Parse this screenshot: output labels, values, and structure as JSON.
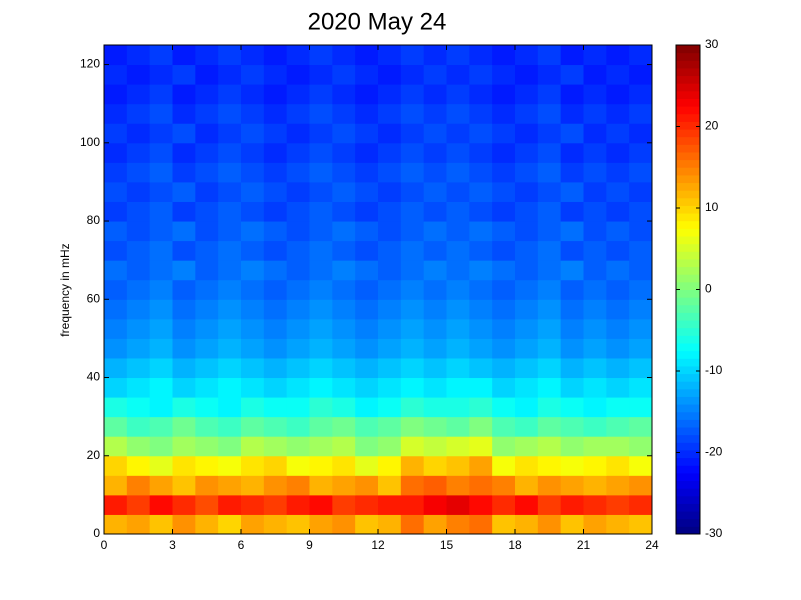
{
  "chart_data": {
    "type": "heatmap",
    "title": "2020 May 24",
    "y_label": "frequency in mHz",
    "colormap": "jet",
    "xlim": [
      0,
      24
    ],
    "ylim": [
      0,
      125
    ],
    "xticks": [
      0,
      3,
      6,
      9,
      12,
      15,
      18,
      21,
      24
    ],
    "yticks": [
      0,
      20,
      40,
      60,
      80,
      100,
      120
    ],
    "clim": [
      -30,
      30
    ],
    "cticks": [
      -30,
      -20,
      -10,
      0,
      10,
      20,
      30
    ],
    "values": [
      [
        12,
        13,
        11,
        14,
        12,
        10,
        13,
        12,
        11,
        13,
        14,
        11,
        12,
        16,
        13,
        15,
        16,
        11,
        12,
        14,
        11,
        13,
        12,
        11
      ],
      [
        21,
        19,
        22,
        20,
        18,
        21,
        20,
        19,
        21,
        22,
        19,
        20,
        21,
        21,
        23,
        24,
        22,
        20,
        22,
        19,
        21,
        20,
        19,
        20
      ],
      [
        12,
        15,
        13,
        11,
        14,
        13,
        12,
        14,
        15,
        12,
        13,
        14,
        11,
        16,
        17,
        15,
        16,
        15,
        12,
        14,
        13,
        12,
        13,
        14
      ],
      [
        10,
        8,
        6,
        9,
        8,
        7,
        9,
        10,
        7,
        8,
        9,
        6,
        8,
        12,
        10,
        11,
        13,
        7,
        9,
        8,
        7,
        8,
        9,
        7
      ],
      [
        3,
        1,
        0,
        2,
        1,
        0,
        3,
        2,
        1,
        2,
        3,
        0,
        1,
        5,
        4,
        5,
        6,
        1,
        2,
        3,
        1,
        2,
        2,
        1
      ],
      [
        -2,
        -4,
        -3,
        -1,
        -3,
        -4,
        -2,
        -3,
        -4,
        -2,
        -1,
        -3,
        -2,
        0,
        -1,
        -2,
        0,
        -3,
        -4,
        -2,
        -3,
        -4,
        -3,
        -2
      ],
      [
        -6,
        -7,
        -8,
        -6,
        -7,
        -8,
        -6,
        -7,
        -7,
        -5,
        -6,
        -8,
        -7,
        -5,
        -6,
        -6,
        -5,
        -7,
        -8,
        -6,
        -7,
        -8,
        -7,
        -7
      ],
      [
        -10,
        -9,
        -8,
        -10,
        -9,
        -8,
        -9,
        -10,
        -9,
        -8,
        -9,
        -10,
        -9,
        -8,
        -9,
        -8,
        -8,
        -10,
        -9,
        -8,
        -10,
        -9,
        -10,
        -9
      ],
      [
        -12,
        -11,
        -10,
        -12,
        -11,
        -10,
        -11,
        -12,
        -11,
        -10,
        -11,
        -12,
        -11,
        -10,
        -11,
        -10,
        -11,
        -12,
        -11,
        -10,
        -12,
        -11,
        -12,
        -11
      ],
      [
        -14,
        -13,
        -12,
        -14,
        -13,
        -12,
        -13,
        -14,
        -13,
        -12,
        -13,
        -14,
        -13,
        -12,
        -13,
        -12,
        -13,
        -14,
        -13,
        -12,
        -14,
        -13,
        -14,
        -13
      ],
      [
        -15,
        -14,
        -13,
        -15,
        -14,
        -13,
        -14,
        -15,
        -14,
        -13,
        -14,
        -15,
        -14,
        -13,
        -14,
        -13,
        -14,
        -15,
        -14,
        -13,
        -15,
        -14,
        -15,
        -14
      ],
      [
        -16,
        -15,
        -14,
        -16,
        -15,
        -14,
        -15,
        -16,
        -15,
        -14,
        -15,
        -16,
        -15,
        -14,
        -15,
        -14,
        -15,
        -16,
        -15,
        -14,
        -16,
        -15,
        -16,
        -15
      ],
      [
        -17,
        -16,
        -15,
        -17,
        -16,
        -15,
        -16,
        -17,
        -16,
        -15,
        -16,
        -17,
        -16,
        -15,
        -16,
        -15,
        -16,
        -17,
        -16,
        -15,
        -17,
        -16,
        -17,
        -16
      ],
      [
        -16,
        -17,
        -16,
        -15,
        -17,
        -16,
        -15,
        -16,
        -17,
        -16,
        -15,
        -16,
        -17,
        -16,
        -15,
        -16,
        -15,
        -16,
        -17,
        -16,
        -15,
        -17,
        -16,
        -17
      ],
      [
        -18,
        -17,
        -16,
        -18,
        -17,
        -16,
        -17,
        -18,
        -17,
        -16,
        -17,
        -18,
        -17,
        -16,
        -17,
        -16,
        -17,
        -18,
        -17,
        -16,
        -18,
        -17,
        -18,
        -17
      ],
      [
        -17,
        -18,
        -17,
        -16,
        -18,
        -17,
        -16,
        -17,
        -18,
        -17,
        -16,
        -17,
        -18,
        -17,
        -16,
        -17,
        -16,
        -17,
        -18,
        -17,
        -16,
        -18,
        -17,
        -18
      ],
      [
        -19,
        -18,
        -17,
        -19,
        -18,
        -17,
        -18,
        -19,
        -18,
        -17,
        -18,
        -19,
        -18,
        -17,
        -18,
        -17,
        -18,
        -19,
        -18,
        -17,
        -19,
        -18,
        -19,
        -18
      ],
      [
        -18,
        -19,
        -18,
        -17,
        -19,
        -18,
        -17,
        -18,
        -19,
        -18,
        -17,
        -18,
        -19,
        -18,
        -17,
        -18,
        -17,
        -18,
        -19,
        -18,
        -17,
        -19,
        -18,
        -19
      ],
      [
        -19,
        -18,
        -17,
        -19,
        -18,
        -17,
        -18,
        -19,
        -18,
        -17,
        -18,
        -19,
        -18,
        -17,
        -18,
        -17,
        -18,
        -19,
        -18,
        -17,
        -19,
        -18,
        -19,
        -18
      ],
      [
        -20,
        -19,
        -18,
        -20,
        -19,
        -18,
        -19,
        -20,
        -19,
        -18,
        -19,
        -20,
        -19,
        -18,
        -19,
        -18,
        -19,
        -20,
        -19,
        -18,
        -20,
        -19,
        -20,
        -19
      ],
      [
        -19,
        -20,
        -19,
        -18,
        -20,
        -19,
        -18,
        -19,
        -20,
        -19,
        -18,
        -19,
        -20,
        -19,
        -18,
        -19,
        -18,
        -19,
        -20,
        -19,
        -18,
        -20,
        -19,
        -20
      ],
      [
        -20,
        -19,
        -18,
        -20,
        -19,
        -18,
        -19,
        -20,
        -19,
        -18,
        -19,
        -20,
        -19,
        -18,
        -19,
        -18,
        -19,
        -20,
        -19,
        -18,
        -20,
        -19,
        -20,
        -19
      ],
      [
        -21,
        -20,
        -19,
        -21,
        -20,
        -19,
        -20,
        -21,
        -20,
        -19,
        -20,
        -21,
        -20,
        -19,
        -20,
        -19,
        -20,
        -21,
        -20,
        -19,
        -21,
        -20,
        -21,
        -20
      ],
      [
        -20,
        -21,
        -20,
        -19,
        -21,
        -20,
        -19,
        -20,
        -21,
        -20,
        -19,
        -20,
        -21,
        -20,
        -19,
        -20,
        -19,
        -20,
        -21,
        -20,
        -19,
        -21,
        -20,
        -21
      ],
      [
        -21,
        -20,
        -19,
        -21,
        -20,
        -19,
        -20,
        -21,
        -20,
        -19,
        -20,
        -21,
        -20,
        -19,
        -20,
        -19,
        -20,
        -21,
        -20,
        -19,
        -21,
        -20,
        -21,
        -20
      ]
    ]
  }
}
